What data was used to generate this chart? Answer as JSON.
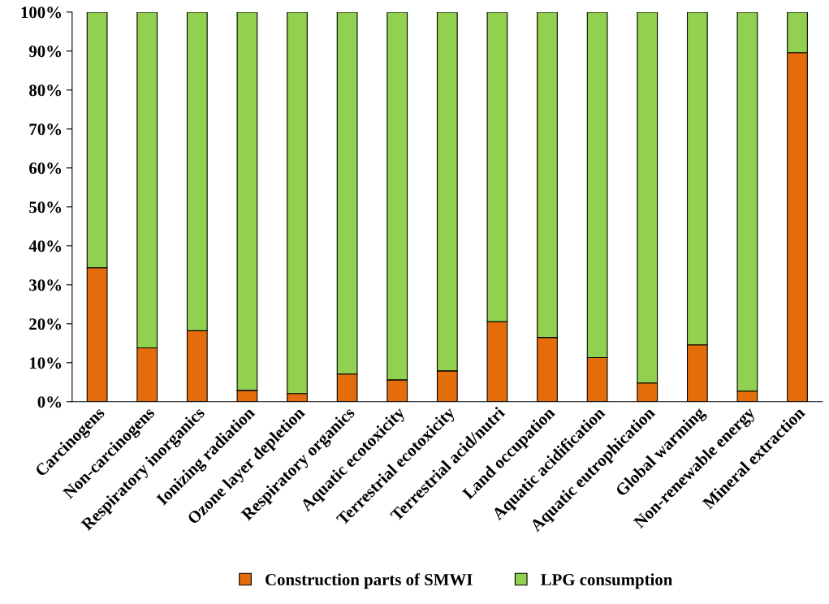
{
  "chart_data": {
    "type": "bar",
    "stacked": true,
    "categories": [
      "Carcinogens",
      "Non-carcinogens",
      "Respiratory inorganics",
      "Ionizing radiation",
      "Ozone layer depletion",
      "Respiratory organics",
      "Aquatic ecotoxicity",
      "Terrestrial ecotoxicity",
      "Terrestrial acid/nutri",
      "Land occupation",
      "Aquatic acidification",
      "Aquatic eutrophication",
      "Global warming",
      "Non-renewable energy",
      "Mineral extraction"
    ],
    "series": [
      {
        "name": "Construction parts of SMWI",
        "color": "#e46c0a",
        "values": [
          34.4,
          13.8,
          18.2,
          2.9,
          2.1,
          7.1,
          5.6,
          7.9,
          20.5,
          16.5,
          11.3,
          4.8,
          14.6,
          2.7,
          89.6
        ]
      },
      {
        "name": "LPG consumption",
        "color": "#92d050",
        "values": [
          65.6,
          86.2,
          81.8,
          97.1,
          97.9,
          92.9,
          94.4,
          92.1,
          79.5,
          83.5,
          88.7,
          95.2,
          85.4,
          97.3,
          10.4
        ]
      }
    ],
    "ylim": [
      0,
      100
    ],
    "yticks": [
      {
        "value": 0,
        "label": "0%"
      },
      {
        "value": 10,
        "label": "10%"
      },
      {
        "value": 20,
        "label": "20%"
      },
      {
        "value": 30,
        "label": "30%"
      },
      {
        "value": 40,
        "label": "40%"
      },
      {
        "value": 50,
        "label": "50%"
      },
      {
        "value": 60,
        "label": "60%"
      },
      {
        "value": 70,
        "label": "70%"
      },
      {
        "value": 80,
        "label": "80%"
      },
      {
        "value": 90,
        "label": "90%"
      },
      {
        "value": 100,
        "label": "100%"
      }
    ],
    "grid": false,
    "legend": "bottom"
  }
}
